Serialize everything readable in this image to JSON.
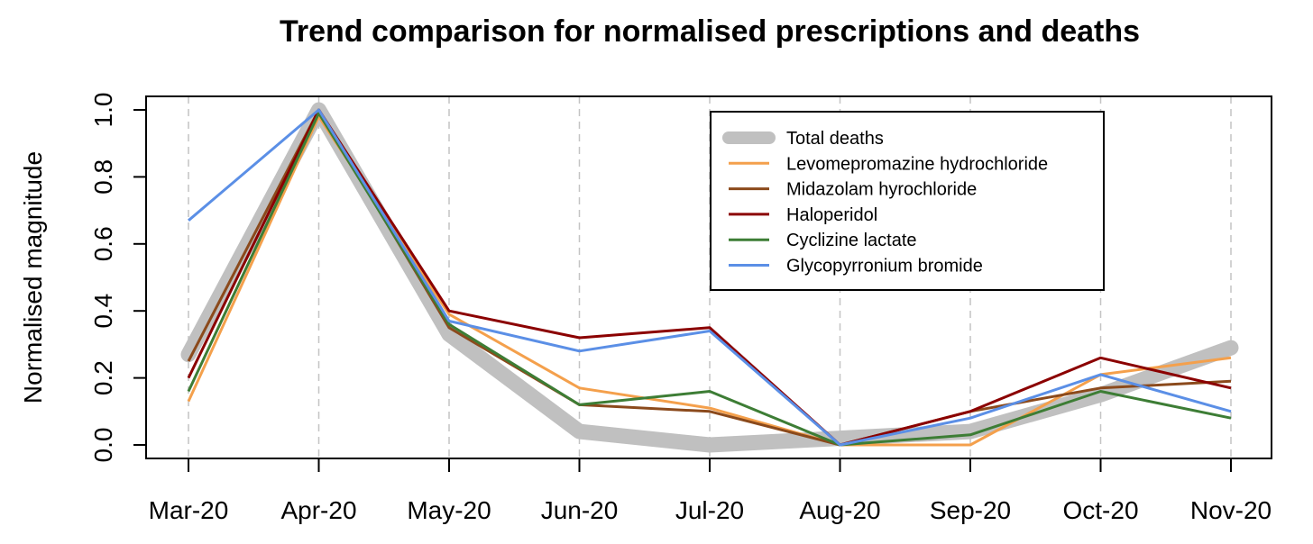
{
  "chart_data": {
    "type": "line",
    "title": "Trend comparison for normalised prescriptions and deaths",
    "xlabel": "",
    "ylabel": "Normalised magnitude",
    "categories": [
      "Mar-20",
      "Apr-20",
      "May-20",
      "Jun-20",
      "Jul-20",
      "Aug-20",
      "Sep-20",
      "Oct-20",
      "Nov-20"
    ],
    "ylim": [
      0.0,
      1.0
    ],
    "yticks": [
      "0.0",
      "0.2",
      "0.4",
      "0.6",
      "0.8",
      "1.0"
    ],
    "grid": "vertical-dashed",
    "legend_position": "top-right",
    "series": [
      {
        "name": "Total deaths",
        "color": "#c0c0c0",
        "values": [
          0.27,
          1.0,
          0.33,
          0.04,
          0.0,
          0.02,
          0.04,
          0.15,
          0.29
        ]
      },
      {
        "name": "Levomepromazine hydrochloride",
        "color": "#f4a04c",
        "values": [
          0.13,
          0.98,
          0.39,
          0.17,
          0.11,
          0.0,
          0.0,
          0.21,
          0.26
        ]
      },
      {
        "name": "Midazolam hyrochloride",
        "color": "#8b4a1c",
        "values": [
          0.25,
          1.0,
          0.35,
          0.12,
          0.1,
          0.0,
          0.1,
          0.17,
          0.19
        ]
      },
      {
        "name": "Haloperidol",
        "color": "#8b0000",
        "values": [
          0.2,
          1.0,
          0.4,
          0.32,
          0.35,
          0.0,
          0.1,
          0.26,
          0.17
        ]
      },
      {
        "name": "Cyclizine lactate",
        "color": "#3d7d35",
        "values": [
          0.16,
          0.99,
          0.36,
          0.12,
          0.16,
          0.0,
          0.03,
          0.16,
          0.08
        ]
      },
      {
        "name": "Glycopyrronium bromide",
        "color": "#5b8fe6",
        "values": [
          0.67,
          1.0,
          0.37,
          0.28,
          0.34,
          0.0,
          0.08,
          0.21,
          0.1
        ]
      }
    ]
  }
}
